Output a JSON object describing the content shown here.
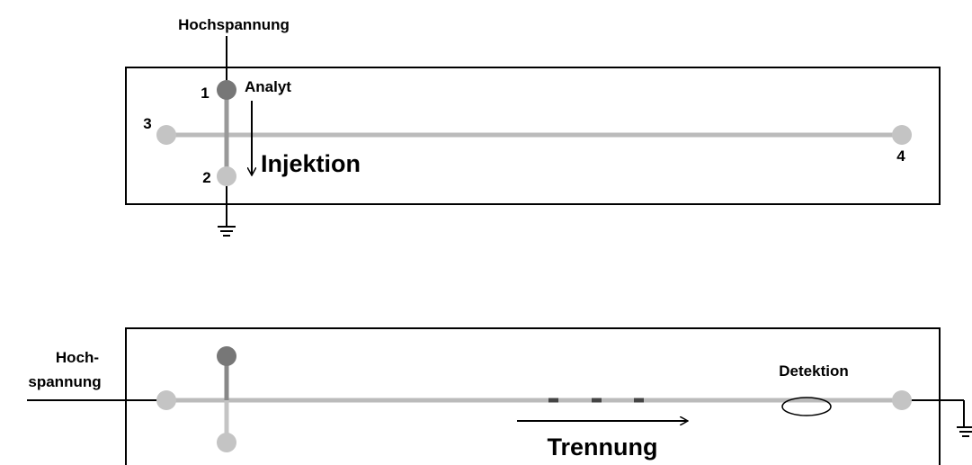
{
  "top": {
    "voltage_label": "Hochspannung",
    "ports": [
      "1",
      "2",
      "3",
      "4"
    ],
    "analyte_label": "Analyt",
    "step_label": "Injektion"
  },
  "bottom": {
    "voltage_label_line1": "Hoch-",
    "voltage_label_line2": "spannung",
    "detection_label": "Detektion",
    "step_label": "Trennung"
  }
}
